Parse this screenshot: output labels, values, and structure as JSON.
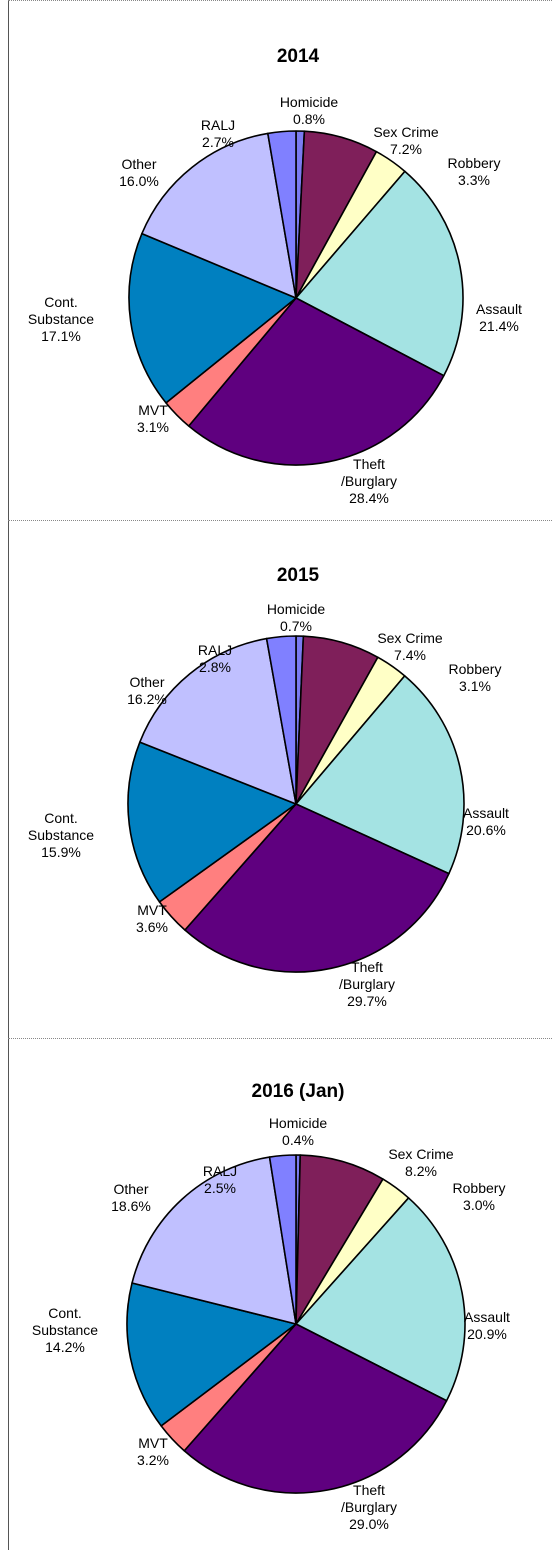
{
  "chart_data": [
    {
      "type": "pie",
      "title": "2014",
      "slices": [
        {
          "label": "Homicide",
          "value": 0.8,
          "value_label": "0.8%",
          "color": "#7b7bf0"
        },
        {
          "label": "Sex Crime",
          "value": 7.2,
          "value_label": "7.2%",
          "color": "#7f1f5a"
        },
        {
          "label": "Robbery",
          "value": 3.3,
          "value_label": "3.3%",
          "color": "#ffffc6"
        },
        {
          "label": "Assault",
          "value": 21.4,
          "value_label": "21.4%",
          "color": "#a4e3e3"
        },
        {
          "label": "Theft\n/Burglary",
          "value": 28.4,
          "value_label": "28.4%",
          "color": "#5f007f"
        },
        {
          "label": "MVT",
          "value": 3.1,
          "value_label": "3.1%",
          "color": "#ff7f7f"
        },
        {
          "label": "Cont.\nSubstance",
          "value": 17.1,
          "value_label": "17.1%",
          "color": "#0080c0"
        },
        {
          "label": "Other",
          "value": 16.0,
          "value_label": "16.0%",
          "color": "#c0c0ff"
        },
        {
          "label": "RALJ",
          "value": 2.7,
          "value_label": "2.7%",
          "color": "#8080ff"
        }
      ]
    },
    {
      "type": "pie",
      "title": "2015",
      "slices": [
        {
          "label": "Homicide",
          "value": 0.7,
          "value_label": "0.7%",
          "color": "#7b7bf0"
        },
        {
          "label": "Sex Crime",
          "value": 7.4,
          "value_label": "7.4%",
          "color": "#7f1f5a"
        },
        {
          "label": "Robbery",
          "value": 3.1,
          "value_label": "3.1%",
          "color": "#ffffc6"
        },
        {
          "label": "Assault",
          "value": 20.6,
          "value_label": "20.6%",
          "color": "#a4e3e3"
        },
        {
          "label": "Theft\n/Burglary",
          "value": 29.7,
          "value_label": "29.7%",
          "color": "#5f007f"
        },
        {
          "label": "MVT",
          "value": 3.6,
          "value_label": "3.6%",
          "color": "#ff7f7f"
        },
        {
          "label": "Cont.\nSubstance",
          "value": 15.9,
          "value_label": "15.9%",
          "color": "#0080c0"
        },
        {
          "label": "Other",
          "value": 16.2,
          "value_label": "16.2%",
          "color": "#c0c0ff"
        },
        {
          "label": "RALJ",
          "value": 2.8,
          "value_label": "2.8%",
          "color": "#8080ff"
        }
      ]
    },
    {
      "type": "pie",
      "title": "2016 (Jan)",
      "slices": [
        {
          "label": "Homicide",
          "value": 0.4,
          "value_label": "0.4%",
          "color": "#7b7bf0"
        },
        {
          "label": "Sex Crime",
          "value": 8.2,
          "value_label": "8.2%",
          "color": "#7f1f5a"
        },
        {
          "label": "Robbery",
          "value": 3.0,
          "value_label": "3.0%",
          "color": "#ffffc6"
        },
        {
          "label": "Assault",
          "value": 20.9,
          "value_label": "20.9%",
          "color": "#a4e3e3"
        },
        {
          "label": "Theft\n/Burglary",
          "value": 29.0,
          "value_label": "29.0%",
          "color": "#5f007f"
        },
        {
          "label": "MVT",
          "value": 3.2,
          "value_label": "3.2%",
          "color": "#ff7f7f"
        },
        {
          "label": "Cont.\nSubstance",
          "value": 14.2,
          "value_label": "14.2%",
          "color": "#0080c0"
        },
        {
          "label": "Other",
          "value": 18.6,
          "value_label": "18.6%",
          "color": "#c0c0ff"
        },
        {
          "label": "RALJ",
          "value": 2.5,
          "value_label": "2.5%",
          "color": "#8080ff"
        }
      ]
    }
  ]
}
